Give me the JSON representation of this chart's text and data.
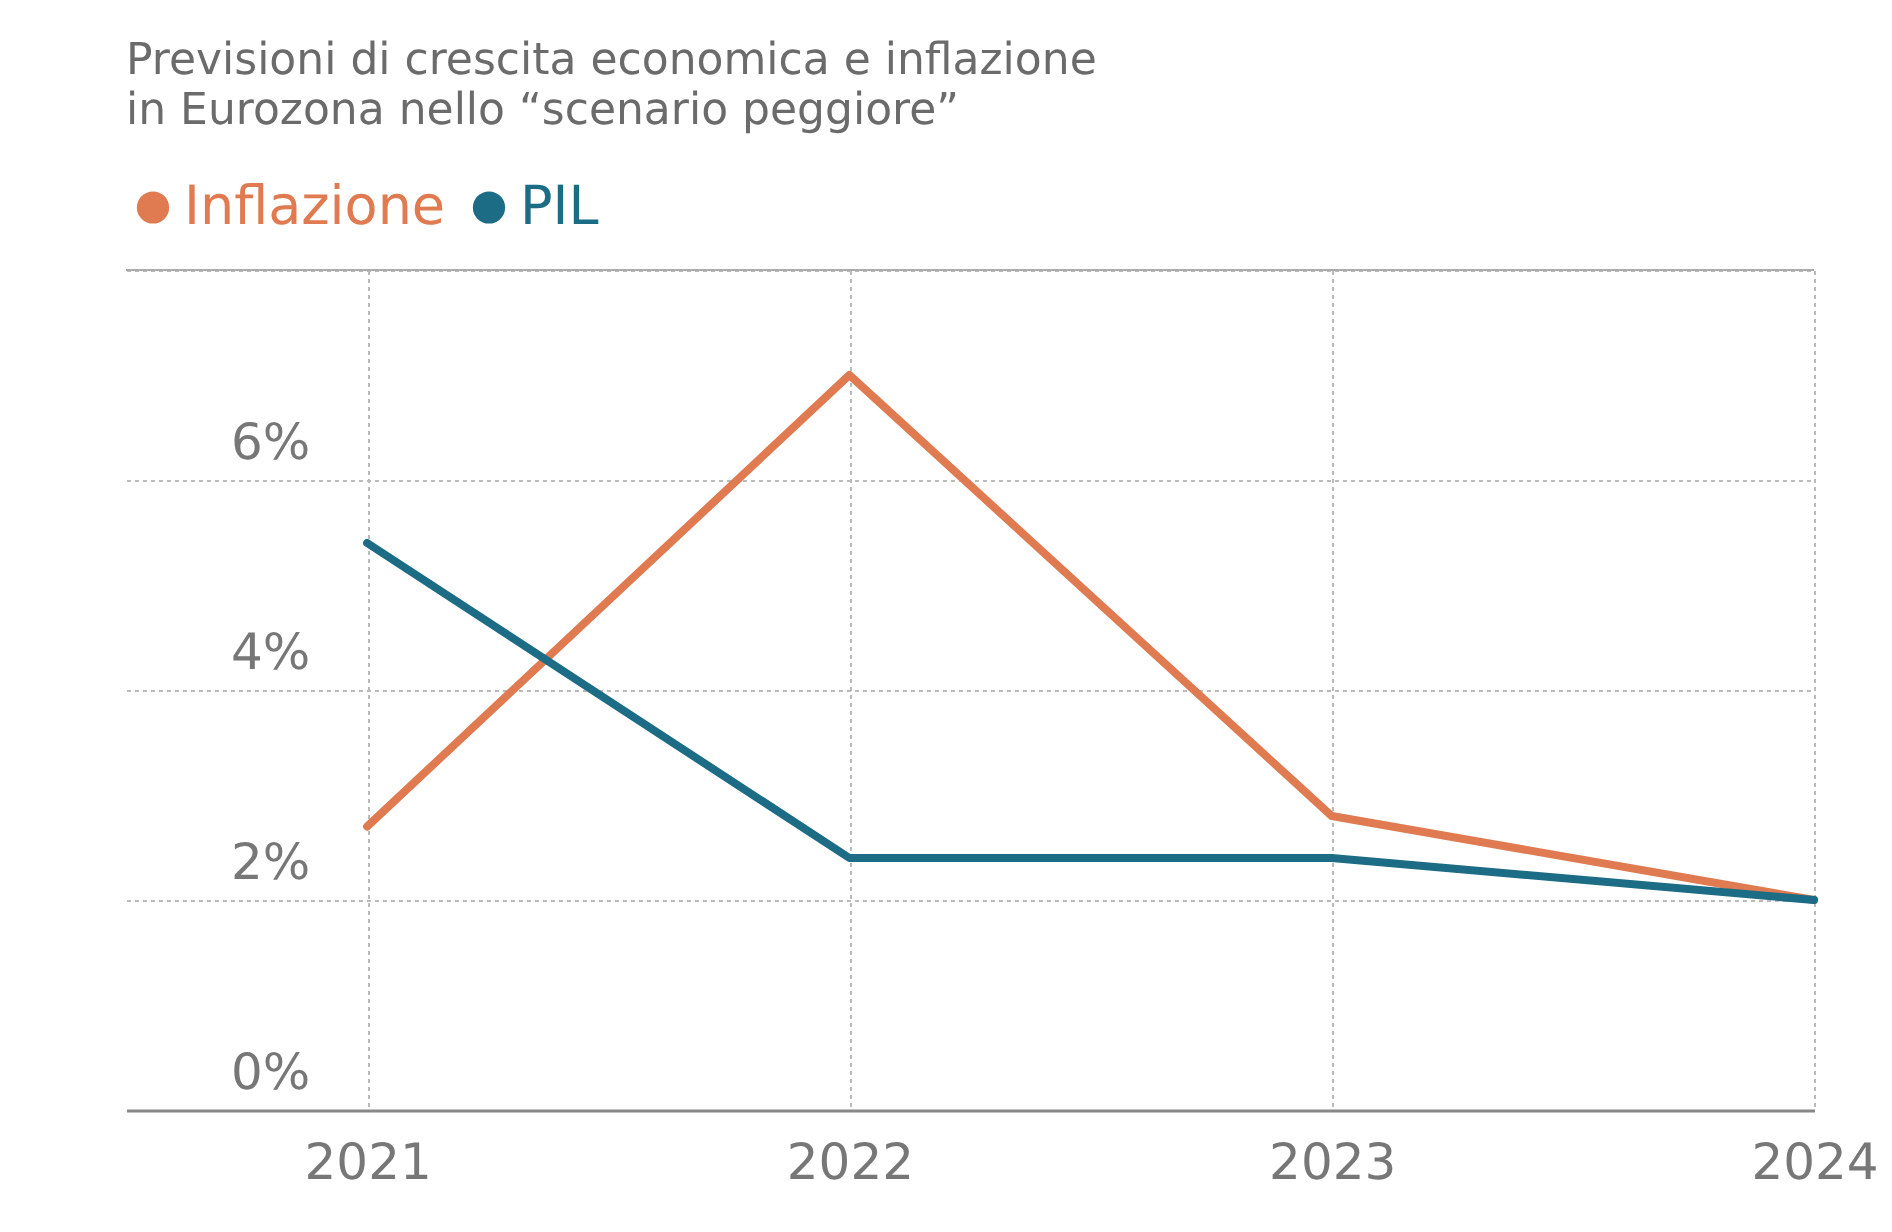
{
  "chart_data": {
    "type": "line",
    "title": "Previsioni di crescita economica e inflazione\nin Eurozona nello “scenario peggiore”",
    "x": [
      2021,
      2022,
      2023,
      2024
    ],
    "xlim": [
      2020.5,
      2024
    ],
    "xticks": [
      2021,
      2022,
      2023,
      2024
    ],
    "ylim": [
      0,
      8
    ],
    "yticks": [
      {
        "value": 0,
        "label": "0%"
      },
      {
        "value": 2,
        "label": "2%"
      },
      {
        "value": 4,
        "label": "4%"
      },
      {
        "value": 6,
        "label": "6%"
      },
      {
        "value": 8,
        "label": null
      }
    ],
    "series": [
      {
        "name": "Inflazione",
        "color": "#e07a50",
        "values": [
          2.7,
          7.0,
          2.8,
          2.0
        ]
      },
      {
        "name": "PIL",
        "color": "#1b6c84",
        "values": [
          5.4,
          2.4,
          2.4,
          2.0
        ]
      }
    ],
    "grid": true,
    "legend": "top left",
    "marker": "none",
    "line_style": "solid"
  }
}
